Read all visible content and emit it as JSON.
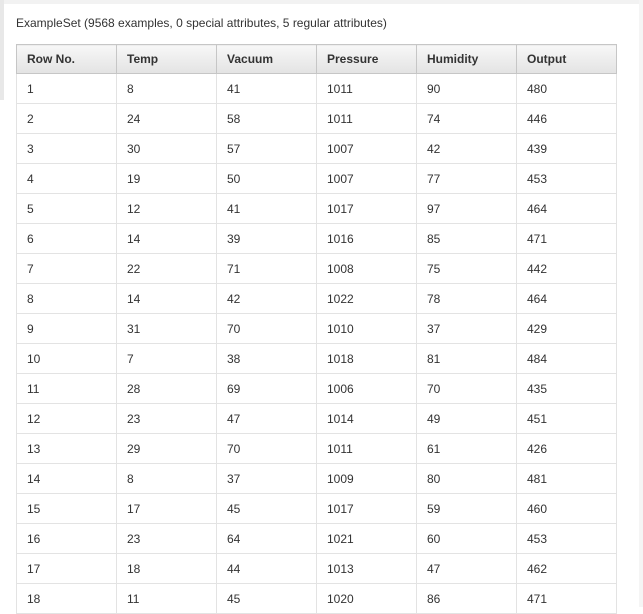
{
  "caption": "ExampleSet (9568 examples, 0 special attributes, 5 regular attributes)",
  "columns": [
    "Row No.",
    "Temp",
    "Vacuum",
    "Pressure",
    "Humidity",
    "Output"
  ],
  "rows": [
    [
      "1",
      "8",
      "41",
      "1011",
      "90",
      "480"
    ],
    [
      "2",
      "24",
      "58",
      "1011",
      "74",
      "446"
    ],
    [
      "3",
      "30",
      "57",
      "1007",
      "42",
      "439"
    ],
    [
      "4",
      "19",
      "50",
      "1007",
      "77",
      "453"
    ],
    [
      "5",
      "12",
      "41",
      "1017",
      "97",
      "464"
    ],
    [
      "6",
      "14",
      "39",
      "1016",
      "85",
      "471"
    ],
    [
      "7",
      "22",
      "71",
      "1008",
      "75",
      "442"
    ],
    [
      "8",
      "14",
      "42",
      "1022",
      "78",
      "464"
    ],
    [
      "9",
      "31",
      "70",
      "1010",
      "37",
      "429"
    ],
    [
      "10",
      "7",
      "38",
      "1018",
      "81",
      "484"
    ],
    [
      "11",
      "28",
      "69",
      "1006",
      "70",
      "435"
    ],
    [
      "12",
      "23",
      "47",
      "1014",
      "49",
      "451"
    ],
    [
      "13",
      "29",
      "70",
      "1011",
      "61",
      "426"
    ],
    [
      "14",
      "8",
      "37",
      "1009",
      "80",
      "481"
    ],
    [
      "15",
      "17",
      "45",
      "1017",
      "59",
      "460"
    ],
    [
      "16",
      "23",
      "64",
      "1021",
      "60",
      "453"
    ],
    [
      "17",
      "18",
      "44",
      "1013",
      "47",
      "462"
    ],
    [
      "18",
      "11",
      "45",
      "1020",
      "86",
      "471"
    ]
  ]
}
